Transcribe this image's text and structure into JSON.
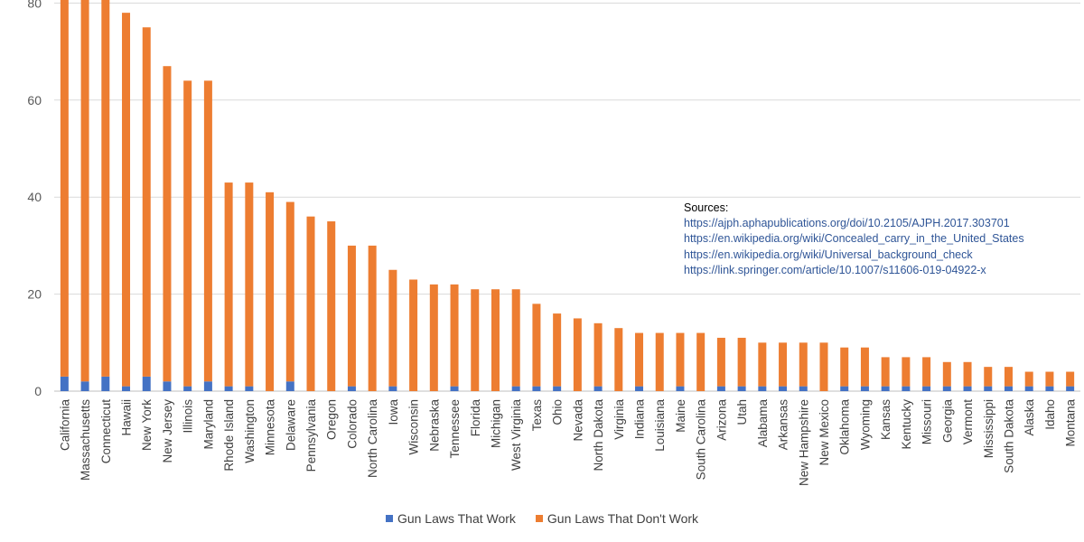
{
  "chart_data": {
    "type": "bar",
    "stacked": true,
    "title": "",
    "xlabel": "",
    "ylabel": "",
    "ylim": [
      0,
      80
    ],
    "yticks": [
      0,
      20,
      40,
      60,
      80
    ],
    "grid": true,
    "legend_position": "bottom",
    "categories": [
      "California",
      "Massachusetts",
      "Connecticut",
      "Hawaii",
      "New York",
      "New Jersey",
      "Illinois",
      "Maryland",
      "Rhode Island",
      "Washington",
      "Minnesota",
      "Delaware",
      "Pennsylvania",
      "Oregon",
      "Colorado",
      "North Carolina",
      "Iowa",
      "Wisconsin",
      "Nebraska",
      "Tennessee",
      "Florida",
      "Michigan",
      "West Virginia",
      "Texas",
      "Ohio",
      "Nevada",
      "North Dakota",
      "Virginia",
      "Indiana",
      "Louisiana",
      "Maine",
      "South Carolina",
      "Arizona",
      "Utah",
      "Alabama",
      "Arkansas",
      "New Hampshire",
      "New Mexico",
      "Oklahoma",
      "Wyoming",
      "Kansas",
      "Kentucky",
      "Missouri",
      "Georgia",
      "Vermont",
      "Mississippi",
      "South Dakota",
      "Alaska",
      "Idaho",
      "Montana"
    ],
    "series": [
      {
        "name": "Gun Laws That Work",
        "color": "#4472c4",
        "values": [
          3,
          2,
          3,
          1,
          3,
          2,
          1,
          2,
          1,
          1,
          0,
          2,
          0,
          0,
          1,
          0,
          1,
          0,
          0,
          1,
          0,
          0,
          1,
          1,
          1,
          0,
          1,
          0,
          1,
          0,
          1,
          0,
          1,
          1,
          1,
          1,
          1,
          0,
          1,
          1,
          1,
          1,
          1,
          1,
          1,
          1,
          1,
          1,
          1,
          1
        ]
      },
      {
        "name": "Gun Laws That Don't Work",
        "color": "#ed7d31",
        "values": [
          79,
          80,
          79,
          77,
          72,
          65,
          63,
          62,
          42,
          42,
          41,
          37,
          36,
          35,
          29,
          30,
          24,
          23,
          22,
          21,
          21,
          21,
          20,
          17,
          15,
          15,
          13,
          13,
          11,
          12,
          11,
          12,
          10,
          10,
          9,
          9,
          9,
          10,
          8,
          8,
          6,
          6,
          6,
          5,
          5,
          4,
          4,
          3,
          3,
          3
        ]
      }
    ]
  },
  "sources": {
    "title": "Sources:",
    "links": [
      "https://ajph.aphapublications.org/doi/10.2105/AJPH.2017.303701",
      "https://en.wikipedia.org/wiki/Concealed_carry_in_the_United_States",
      "https://en.wikipedia.org/wiki/Universal_background_check",
      "https://link.springer.com/article/10.1007/s11606-019-04922-x"
    ]
  },
  "legend": {
    "items": [
      "Gun Laws That Work",
      "Gun Laws That Don't Work"
    ]
  }
}
